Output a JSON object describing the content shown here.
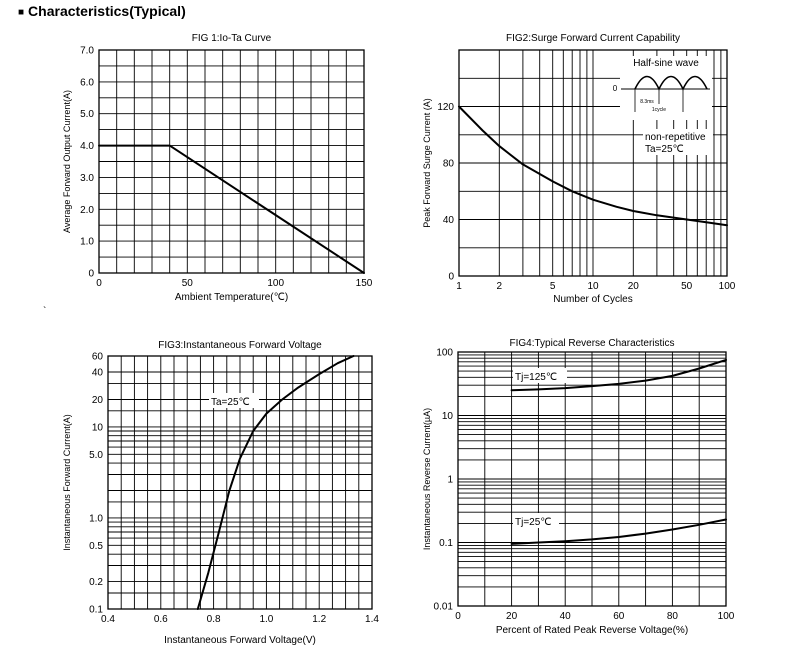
{
  "page_title": "Characteristics(Typical)",
  "stray_mark": "`",
  "chart_data": [
    {
      "id": "fig1",
      "type": "line",
      "title": "FIG 1:Io-Ta Curve",
      "xlabel": "Ambient  Temperature(℃)",
      "ylabel": "Average Forward Output Current(A)",
      "xlim": [
        0,
        150
      ],
      "ylim": [
        0,
        7
      ],
      "x_scale": "linear",
      "y_scale": "linear",
      "x_ticks": [
        0,
        50,
        100,
        150
      ],
      "x_tick_labels": [
        "0",
        "50",
        "100",
        "150"
      ],
      "y_ticks": [
        0,
        1,
        2,
        3,
        4,
        5,
        6,
        7
      ],
      "y_tick_labels": [
        "0",
        "1.0",
        "2.0",
        "3.0",
        "4.0",
        "5.0",
        "6.0",
        "7.0"
      ],
      "grid": true,
      "series": [
        {
          "x": [
            0,
            40,
            150
          ],
          "y": [
            4,
            4,
            0
          ]
        }
      ]
    },
    {
      "id": "fig2",
      "type": "line",
      "title": "FIG2:Surge Forward Current Capability",
      "xlabel": "Number of Cycles",
      "ylabel": "Peak Forward Surge  Current (A)",
      "xlim": [
        1,
        100
      ],
      "ylim": [
        0,
        160
      ],
      "x_scale": "log",
      "y_scale": "linear",
      "x_ticks": [
        1,
        2,
        5,
        10,
        20,
        50,
        100
      ],
      "x_tick_labels": [
        "1",
        "2",
        "5",
        "10",
        "20",
        "50",
        "100"
      ],
      "y_ticks": [
        0,
        40,
        80,
        120
      ],
      "y_tick_labels": [
        "0",
        "40",
        "80",
        "120"
      ],
      "grid": true,
      "series": [
        {
          "x": [
            1,
            1.5,
            2,
            3,
            5,
            7,
            10,
            15,
            20,
            30,
            50,
            70,
            100
          ],
          "y": [
            120,
            103,
            92,
            79,
            67,
            60,
            54,
            49,
            46,
            43,
            40,
            38,
            36
          ]
        }
      ],
      "annotations": [
        "non-repetitive",
        "Ta=25℃"
      ],
      "inset": {
        "title": "Half-sine wave",
        "zero_label": "0",
        "labels": [
          "8.3ms",
          "1cycle"
        ]
      }
    },
    {
      "id": "fig3",
      "type": "line",
      "title": "FIG3:Instantaneous Forward Voltage",
      "xlabel": "Instantaneous Forward Voltage(V)",
      "ylabel": "Instantaneous Forward Current(A)",
      "xlim": [
        0.4,
        1.4
      ],
      "ylim": [
        0.1,
        60
      ],
      "x_scale": "linear",
      "y_scale": "log",
      "x_ticks": [
        0.4,
        0.6,
        0.8,
        1.0,
        1.2,
        1.4
      ],
      "x_tick_labels": [
        "0.4",
        "0.6",
        "0.8",
        "1.0",
        "1.2",
        "1.4"
      ],
      "y_ticks": [
        0.1,
        0.2,
        0.5,
        1,
        5,
        10,
        20,
        40,
        60
      ],
      "y_tick_labels": [
        "0.1",
        "0.2",
        "0.5",
        "1.0",
        "5.0",
        "10",
        "20",
        "40",
        "60"
      ],
      "grid": true,
      "series": [
        {
          "x": [
            0.74,
            0.78,
            0.82,
            0.86,
            0.9,
            0.95,
            1.0,
            1.06,
            1.12,
            1.2,
            1.27,
            1.33
          ],
          "y": [
            0.1,
            0.25,
            0.7,
            2,
            4.5,
            9,
            14,
            20,
            27,
            38,
            50,
            60
          ]
        }
      ],
      "annotations": [
        "Ta=25℃"
      ]
    },
    {
      "id": "fig4",
      "type": "line",
      "title": "FIG4:Typical Reverse Characteristics",
      "xlabel": "Percent of Rated Peak Reverse Voltage(%)",
      "ylabel": "Instantaneous Reverse Current(µA)",
      "xlim": [
        0,
        100
      ],
      "ylim": [
        0.01,
        100
      ],
      "x_scale": "linear",
      "y_scale": "log",
      "x_ticks": [
        0,
        20,
        40,
        60,
        80,
        100
      ],
      "x_tick_labels": [
        "0",
        "20",
        "40",
        "60",
        "80",
        "100"
      ],
      "y_ticks": [
        0.01,
        0.1,
        1,
        10,
        100
      ],
      "y_tick_labels": [
        "0.01",
        "0.1",
        "1",
        "10",
        "100"
      ],
      "grid": true,
      "series": [
        {
          "name": "Tj=125℃",
          "x": [
            20,
            30,
            40,
            50,
            60,
            70,
            80,
            90,
            100
          ],
          "y": [
            25,
            25.8,
            27,
            29,
            31.5,
            35.5,
            42,
            55,
            75
          ]
        },
        {
          "name": "Tj=25℃",
          "x": [
            20,
            30,
            40,
            50,
            60,
            70,
            80,
            90,
            100
          ],
          "y": [
            0.095,
            0.1,
            0.105,
            0.112,
            0.122,
            0.138,
            0.16,
            0.19,
            0.23
          ]
        }
      ]
    }
  ]
}
